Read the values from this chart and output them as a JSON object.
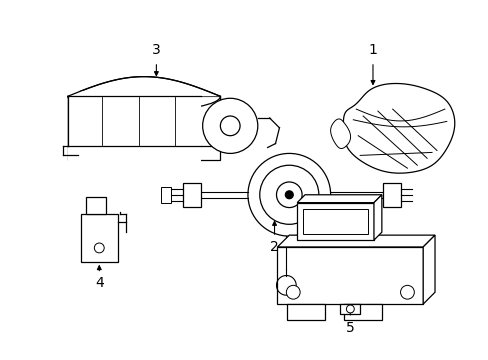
{
  "background_color": "#ffffff",
  "line_color": "#000000",
  "text_color": "#000000",
  "figsize": [
    4.89,
    3.6
  ],
  "dpi": 100
}
